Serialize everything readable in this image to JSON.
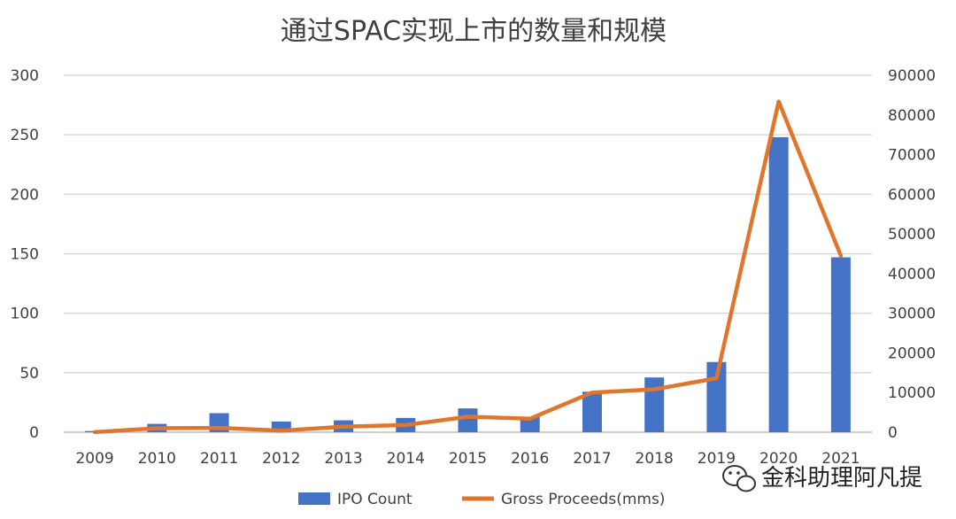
{
  "chart_data": {
    "type": "bar+line",
    "title": "通过SPAC实现上市的数量和规模",
    "categories": [
      "2009",
      "2010",
      "2011",
      "2012",
      "2013",
      "2014",
      "2015",
      "2016",
      "2017",
      "2018",
      "2019",
      "2020",
      "2021"
    ],
    "series": [
      {
        "name": "IPO Count",
        "type": "bar",
        "axis": "left",
        "color": "#4472C4",
        "values": [
          1,
          7,
          16,
          9,
          10,
          12,
          20,
          13,
          34,
          46,
          59,
          248,
          147
        ]
      },
      {
        "name": "Gross Proceeds(mms)",
        "type": "line",
        "axis": "right",
        "color": "#E0762E",
        "values": [
          30,
          1000,
          1100,
          400,
          1400,
          1800,
          3900,
          3400,
          10000,
          10800,
          13600,
          83400,
          44500
        ]
      }
    ],
    "y_left": {
      "min": 0,
      "max": 300,
      "ticks": [
        "0",
        "50",
        "100",
        "150",
        "200",
        "250",
        "300"
      ]
    },
    "y_right": {
      "min": 0,
      "max": 90000,
      "ticks": [
        "0",
        "10000",
        "20000",
        "30000",
        "40000",
        "50000",
        "60000",
        "70000",
        "80000",
        "90000"
      ]
    },
    "grid": true,
    "legend": "bottom-center"
  },
  "watermark": {
    "icon": "wechat-icon",
    "text": "金科助理阿凡提"
  }
}
